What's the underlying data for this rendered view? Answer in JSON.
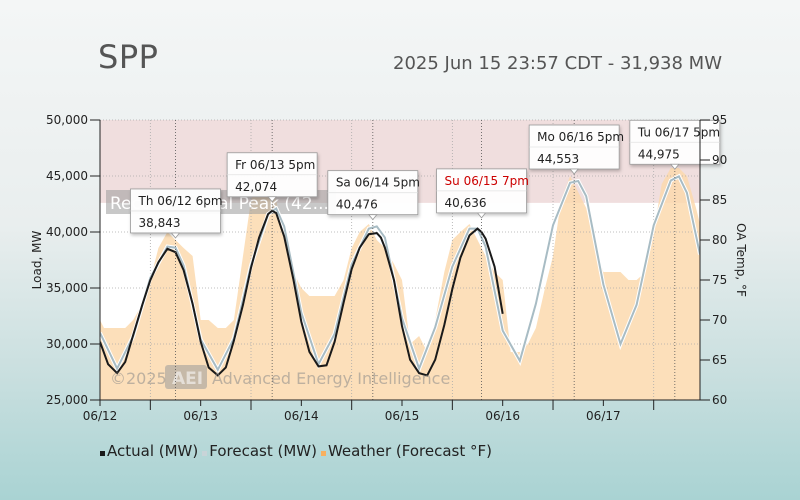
{
  "header": {
    "title": "SPP",
    "subtitle": "2025 Jun 15 23:57 CDT - 31,938 MW"
  },
  "watermark": {
    "copyright": "©2025",
    "logo": "AEI",
    "company": "Advanced Energy Intelligence"
  },
  "record_band_label": "Record Annual Peak (42...",
  "colors": {
    "actual": "#1a1a1a",
    "forecast": "#a8bcc4",
    "weather": "#fbd9ae",
    "record_band": "#f0dede",
    "tooltip_red": "#cc0000"
  },
  "legend": [
    {
      "label": "Actual (MW)",
      "color": "#1a1a1a"
    },
    {
      "label": "Forecast (MW)",
      "color": "#c8d4d8"
    },
    {
      "label": "Weather (Forecast °F)",
      "color": "#f8b060"
    }
  ],
  "chart_data": {
    "type": "line",
    "title": "SPP",
    "subtitle": "2025 Jun 15 23:57 CDT - 31,938 MW",
    "xlabel": "",
    "ylabel": "Load, MW",
    "y2label": "OA Temp, °F",
    "ylim": [
      25000,
      50000
    ],
    "y2lim": [
      60,
      95
    ],
    "yticks": [
      25000,
      30000,
      35000,
      40000,
      45000,
      50000
    ],
    "ytick_labels": [
      "25,000",
      "30,000",
      "35,000",
      "40,000",
      "45,000",
      "50,000"
    ],
    "y2ticks": [
      60,
      65,
      70,
      75,
      80,
      85,
      90,
      95
    ],
    "xlim": [
      0,
      5.96
    ],
    "xticks": [
      0,
      1,
      2,
      3,
      4,
      5
    ],
    "xtick_labels": [
      "06/12",
      "06/13",
      "06/14",
      "06/15",
      "06/16",
      "06/17"
    ],
    "record_band": [
      42600,
      50000
    ],
    "grid": true,
    "legend_position": "bottom",
    "series": [
      {
        "name": "Actual (MW)",
        "axis": "left",
        "x": [
          0.0,
          0.08,
          0.17,
          0.25,
          0.33,
          0.42,
          0.5,
          0.58,
          0.67,
          0.75,
          0.83,
          0.92,
          1.0,
          1.08,
          1.17,
          1.25,
          1.33,
          1.42,
          1.5,
          1.58,
          1.67,
          1.71,
          1.75,
          1.83,
          1.92,
          2.0,
          2.08,
          2.17,
          2.25,
          2.33,
          2.42,
          2.5,
          2.58,
          2.67,
          2.75,
          2.79,
          2.83,
          2.92,
          3.0,
          3.08,
          3.17,
          3.25,
          3.33,
          3.42,
          3.5,
          3.58,
          3.67,
          3.75,
          3.79,
          3.83,
          3.92,
          4.0
        ],
        "values": [
          30200,
          28200,
          27400,
          28400,
          30800,
          33500,
          35700,
          37300,
          38500,
          38200,
          36600,
          33600,
          30200,
          27900,
          27200,
          27900,
          30300,
          33500,
          36800,
          39500,
          41600,
          41900,
          41700,
          39600,
          35800,
          32000,
          29300,
          28000,
          28100,
          30200,
          33700,
          36700,
          38600,
          39800,
          39900,
          39500,
          38600,
          35700,
          31600,
          28600,
          27400,
          27200,
          28600,
          31700,
          34900,
          37700,
          39700,
          40300,
          40000,
          39400,
          36900,
          32700
        ]
      },
      {
        "name": "Forecast (MW)",
        "axis": "left",
        "x": [
          0.0,
          0.17,
          0.33,
          0.5,
          0.67,
          0.75,
          0.83,
          1.0,
          1.17,
          1.33,
          1.5,
          1.67,
          1.75,
          1.83,
          2.0,
          2.17,
          2.33,
          2.5,
          2.67,
          2.75,
          2.83,
          3.0,
          3.17,
          3.33,
          3.5,
          3.67,
          3.75,
          3.83,
          4.0,
          4.17,
          4.33,
          4.5,
          4.67,
          4.75,
          4.83,
          5.0,
          5.17,
          5.33,
          5.5,
          5.67,
          5.75,
          5.83,
          5.96
        ],
        "values": [
          31000,
          27800,
          30700,
          35900,
          38700,
          38600,
          37000,
          30400,
          27700,
          30500,
          37000,
          41600,
          42100,
          40500,
          32800,
          28200,
          30900,
          37100,
          40300,
          40500,
          39500,
          32300,
          27800,
          31500,
          36900,
          40300,
          40300,
          38700,
          31200,
          28500,
          33600,
          40600,
          44400,
          44550,
          43200,
          35300,
          30000,
          33500,
          40600,
          44600,
          44970,
          43500,
          38000
        ]
      },
      {
        "name": "Weather (Forecast °F)",
        "axis": "right",
        "type": "area",
        "x": [
          0.0,
          0.04,
          0.12,
          0.25,
          0.33,
          0.42,
          0.5,
          0.58,
          0.67,
          0.75,
          0.83,
          0.92,
          1.0,
          1.08,
          1.17,
          1.25,
          1.33,
          1.42,
          1.5,
          1.58,
          1.67,
          1.75,
          1.83,
          1.92,
          2.0,
          2.08,
          2.17,
          2.25,
          2.33,
          2.42,
          2.5,
          2.58,
          2.67,
          2.75,
          2.83,
          2.92,
          3.0,
          3.08,
          3.17,
          3.25,
          3.33,
          3.42,
          3.5,
          3.58,
          3.67,
          3.75,
          3.83,
          3.92,
          4.0,
          4.08,
          4.17,
          4.25,
          4.33,
          4.42,
          4.5,
          4.58,
          4.67,
          4.75,
          4.83,
          4.92,
          5.0,
          5.08,
          5.17,
          5.25,
          5.33,
          5.42,
          5.5,
          5.58,
          5.67,
          5.75,
          5.83,
          5.92,
          5.96
        ],
        "values": [
          70,
          69,
          69,
          69,
          70,
          72,
          75,
          79,
          81,
          80,
          79,
          78,
          70,
          70,
          69,
          69,
          70,
          78,
          85,
          87,
          87,
          85,
          80,
          76,
          74,
          73,
          73,
          73,
          73,
          75,
          79,
          81,
          82,
          80,
          79,
          77,
          75,
          67,
          68,
          66,
          70,
          76,
          80,
          81,
          82,
          80,
          78,
          76,
          75,
          66,
          66,
          67,
          69,
          74,
          78,
          85,
          88,
          86,
          84,
          79,
          76,
          76,
          76,
          75,
          75,
          76,
          81,
          87,
          89,
          89,
          88,
          84,
          82
        ]
      }
    ],
    "annotations": [
      {
        "label": "Th 06/12 6pm",
        "value": "38,843",
        "x": 0.75,
        "y": 38843,
        "highlight": false
      },
      {
        "label": "Fr 06/13 5pm",
        "value": "42,074",
        "x": 1.71,
        "y": 42074,
        "highlight": false
      },
      {
        "label": "Sa 06/14 5pm",
        "value": "40,476",
        "x": 2.71,
        "y": 40476,
        "highlight": false
      },
      {
        "label": "Su 06/15 7pm",
        "value": "40,636",
        "x": 3.79,
        "y": 40636,
        "highlight": true
      },
      {
        "label": "Mo 06/16 5pm",
        "value": "44,553",
        "x": 4.71,
        "y": 44553,
        "highlight": false
      },
      {
        "label": "Tu 06/17 5pm",
        "value": "44,975",
        "x": 5.71,
        "y": 44975,
        "highlight": false
      }
    ]
  }
}
